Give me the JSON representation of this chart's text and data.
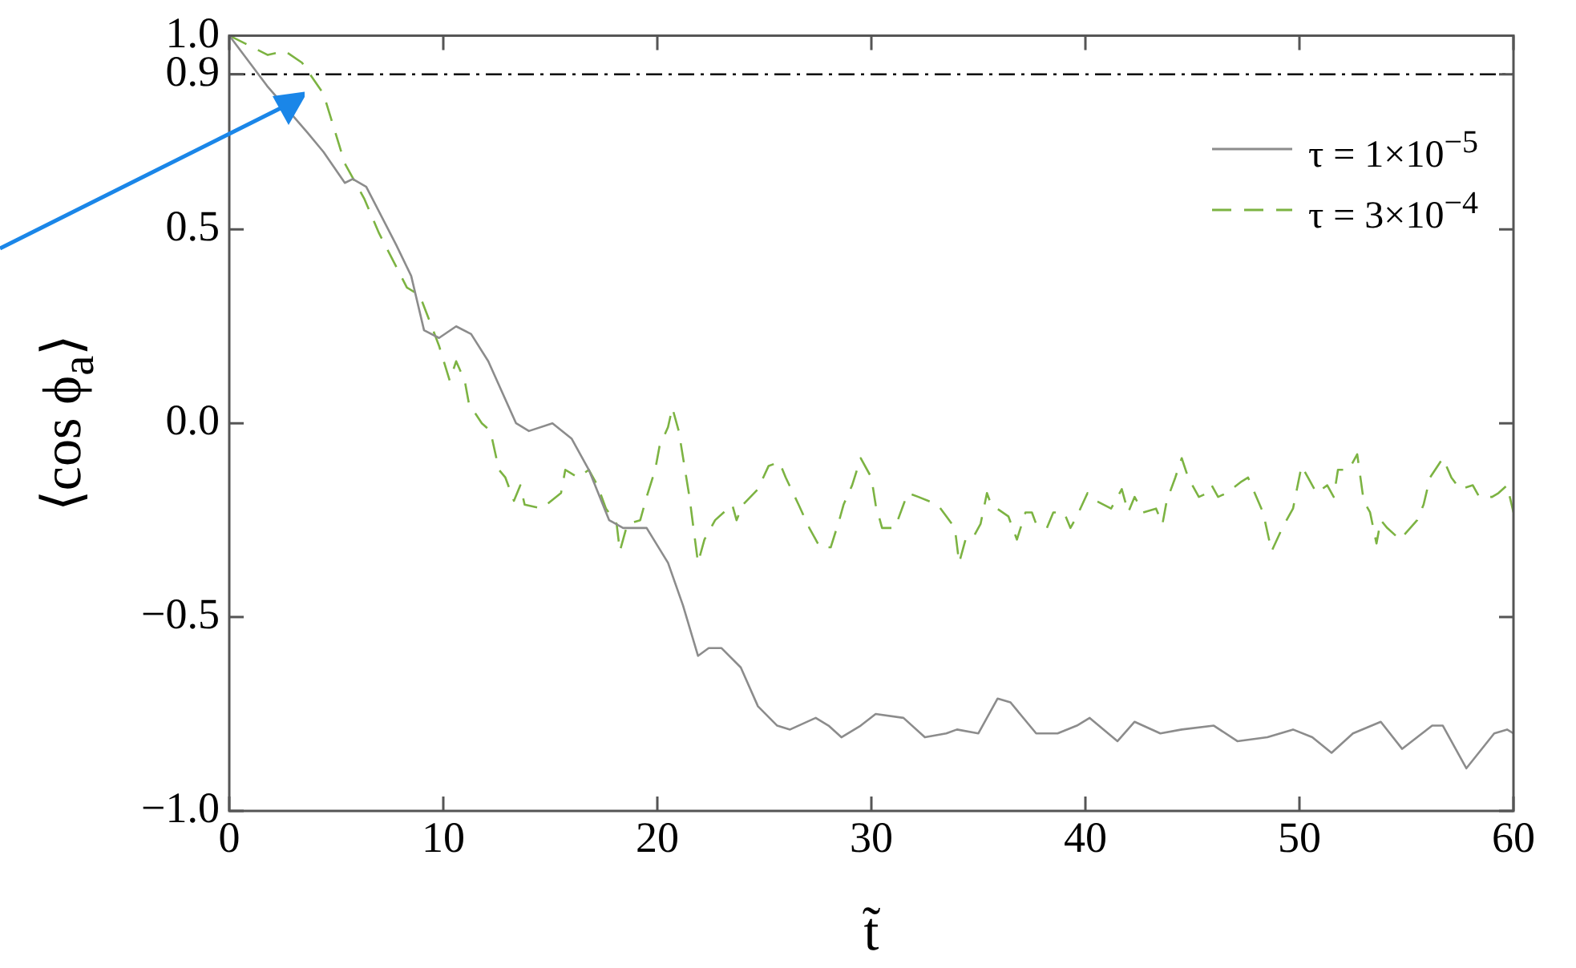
{
  "chart_data": {
    "type": "line",
    "xlabel": "t̃",
    "ylabel": "⟨cos ϕ$_{a}$⟩",
    "xlim": [
      0,
      60
    ],
    "xticks": [
      0,
      10,
      20,
      30,
      40,
      50,
      60
    ],
    "ylim": [
      -1,
      1
    ],
    "yticks": [
      {
        "value": -1,
        "label": "−1.0"
      },
      {
        "value": -0.5,
        "label": "−0.5"
      },
      {
        "value": 0,
        "label": "0.0"
      },
      {
        "value": 0.5,
        "label": "0.5"
      },
      {
        "value": 0.9,
        "label": "0.9"
      },
      {
        "value": 1,
        "label": "1.0"
      }
    ],
    "grid": false,
    "legend": "top right",
    "marker": "none",
    "ref_lines": [
      {
        "axis": "y",
        "value": 0.9,
        "color": "#000000",
        "line_style": "dashdot"
      }
    ],
    "series": [
      {
        "name": "τ = 1×10$^{−5}$",
        "color": "#8c8c8c",
        "line_style": "solid",
        "x": [
          0,
          1.77,
          3.65,
          4.4,
          5.4,
          5.77,
          6.4,
          7.8,
          8.5,
          9.1,
          9.8,
          10.6,
          11.3,
          12.1,
          13.4,
          14.0,
          15.1,
          16.0,
          16.8,
          17.75,
          18.4,
          19.5,
          20.5,
          21.2,
          21.9,
          22.4,
          23.0,
          23.9,
          24.7,
          25.6,
          26.2,
          27.4,
          28.0,
          28.6,
          29.5,
          30.2,
          31.5,
          32.5,
          33.5,
          34.0,
          35.0,
          35.9,
          36.5,
          37.7,
          38.7,
          39.6,
          40.2,
          41.5,
          42.3,
          43.5,
          44.5,
          46.0,
          47.1,
          48.5,
          49.7,
          50.6,
          51.5,
          52.5,
          53.8,
          54.8,
          55.5,
          56.2,
          56.7,
          57.8,
          59.1,
          59.7,
          60
        ],
        "values": [
          1.0,
          0.87,
          0.75,
          0.7,
          0.62,
          0.63,
          0.61,
          0.46,
          0.38,
          0.24,
          0.22,
          0.25,
          0.23,
          0.16,
          0.0,
          -0.02,
          0.0,
          -0.04,
          -0.12,
          -0.25,
          -0.27,
          -0.27,
          -0.36,
          -0.47,
          -0.6,
          -0.58,
          -0.58,
          -0.63,
          -0.73,
          -0.78,
          -0.79,
          -0.76,
          -0.78,
          -0.81,
          -0.78,
          -0.75,
          -0.76,
          -0.81,
          -0.8,
          -0.79,
          -0.8,
          -0.71,
          -0.72,
          -0.8,
          -0.8,
          -0.78,
          -0.76,
          -0.82,
          -0.77,
          -0.8,
          -0.79,
          -0.78,
          -0.82,
          -0.81,
          -0.79,
          -0.81,
          -0.85,
          -0.8,
          -0.77,
          -0.84,
          -0.81,
          -0.78,
          -0.78,
          -0.89,
          -0.8,
          -0.79,
          -0.8
        ]
      },
      {
        "name": "τ = 3×10$^{−4}$",
        "color": "#7cb342",
        "line_style": "dashed",
        "x": [
          0,
          1.8,
          2.6,
          3.4,
          4.4,
          5.4,
          6.3,
          7.0,
          8.3,
          8.9,
          9.8,
          10.3,
          10.6,
          11.0,
          11.2,
          11.8,
          12.2,
          12.6,
          12.9,
          13.3,
          13.6,
          13.8,
          14.6,
          15.5,
          15.7,
          16.3,
          16.8,
          17.2,
          17.6,
          18.1,
          18.25,
          18.6,
          19.2,
          19.5,
          19.9,
          20.1,
          20.5,
          20.7,
          21.0,
          21.5,
          21.9,
          22.2,
          22.7,
          23.5,
          23.7,
          24.0,
          24.7,
          25.2,
          25.7,
          26.0,
          26.6,
          27.1,
          27.6,
          28.1,
          28.5,
          28.7,
          29.1,
          29.5,
          30.0,
          30.2,
          30.5,
          31.1,
          31.5,
          31.7,
          32.2,
          33.1,
          33.5,
          33.9,
          34.1,
          34.4,
          34.7,
          35.1,
          35.4,
          35.6,
          36.4,
          36.8,
          37.2,
          37.5,
          37.7,
          38.2,
          38.5,
          39.0,
          39.3,
          39.6,
          40.1,
          40.5,
          41.2,
          41.7,
          42.0,
          42.3,
          42.7,
          43.3,
          43.6,
          43.8,
          44.2,
          44.5,
          44.8,
          45.3,
          45.7,
          45.9,
          46.2,
          46.6,
          47.3,
          47.6,
          48.3,
          48.7,
          49.2,
          49.7,
          50.1,
          50.4,
          50.8,
          51.3,
          51.6,
          51.8,
          52.3,
          52.7,
          53.0,
          53.3,
          53.6,
          53.8,
          54.1,
          54.7,
          55.5,
          55.8,
          56.1,
          56.7,
          57.1,
          57.5,
          58.1,
          58.4,
          59.0,
          59.3,
          59.7,
          60
        ],
        "values": [
          1.0,
          0.95,
          0.96,
          0.93,
          0.85,
          0.67,
          0.58,
          0.49,
          0.35,
          0.33,
          0.2,
          0.11,
          0.16,
          0.11,
          0.05,
          0.0,
          -0.02,
          -0.12,
          -0.14,
          -0.2,
          -0.16,
          -0.21,
          -0.22,
          -0.18,
          -0.12,
          -0.14,
          -0.12,
          -0.16,
          -0.22,
          -0.26,
          -0.33,
          -0.26,
          -0.25,
          -0.19,
          -0.12,
          -0.06,
          -0.01,
          0.04,
          -0.02,
          -0.19,
          -0.36,
          -0.3,
          -0.25,
          -0.21,
          -0.25,
          -0.21,
          -0.17,
          -0.11,
          -0.1,
          -0.14,
          -0.21,
          -0.27,
          -0.32,
          -0.32,
          -0.25,
          -0.21,
          -0.16,
          -0.09,
          -0.14,
          -0.21,
          -0.27,
          -0.27,
          -0.21,
          -0.18,
          -0.19,
          -0.21,
          -0.24,
          -0.27,
          -0.36,
          -0.3,
          -0.3,
          -0.26,
          -0.18,
          -0.21,
          -0.24,
          -0.3,
          -0.23,
          -0.23,
          -0.26,
          -0.27,
          -0.23,
          -0.23,
          -0.27,
          -0.24,
          -0.18,
          -0.2,
          -0.22,
          -0.17,
          -0.23,
          -0.19,
          -0.23,
          -0.22,
          -0.26,
          -0.2,
          -0.14,
          -0.09,
          -0.14,
          -0.19,
          -0.18,
          -0.16,
          -0.19,
          -0.18,
          -0.15,
          -0.14,
          -0.23,
          -0.33,
          -0.27,
          -0.22,
          -0.11,
          -0.14,
          -0.18,
          -0.16,
          -0.19,
          -0.12,
          -0.12,
          -0.08,
          -0.2,
          -0.23,
          -0.31,
          -0.25,
          -0.27,
          -0.3,
          -0.25,
          -0.21,
          -0.14,
          -0.09,
          -0.14,
          -0.17,
          -0.16,
          -0.19,
          -0.19,
          -0.18,
          -0.16,
          -0.23
        ]
      }
    ]
  }
}
